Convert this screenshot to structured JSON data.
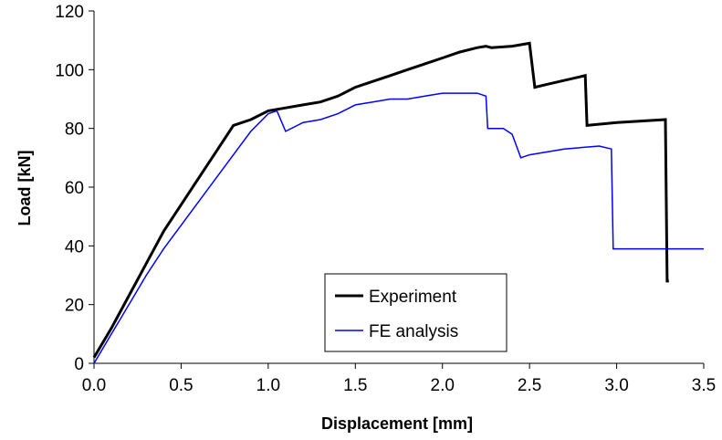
{
  "chart_data": {
    "type": "line",
    "title": "",
    "xlabel": "Displacement [mm]",
    "ylabel": "Load [kN]",
    "xlim": [
      0,
      3.5
    ],
    "ylim": [
      0,
      120
    ],
    "x_ticks": [
      "0.0",
      "0.5",
      "1.0",
      "1.5",
      "2.0",
      "2.5",
      "3.0",
      "3.5"
    ],
    "y_ticks": [
      "0",
      "20",
      "40",
      "60",
      "80",
      "100",
      "120"
    ],
    "grid": false,
    "legend_position": "bottom-center",
    "series": [
      {
        "name": "Experiment",
        "color": "#000000",
        "x": [
          0.0,
          0.1,
          0.2,
          0.3,
          0.4,
          0.5,
          0.6,
          0.7,
          0.8,
          0.9,
          1.0,
          1.1,
          1.2,
          1.3,
          1.4,
          1.5,
          1.6,
          1.7,
          1.8,
          1.9,
          2.0,
          2.1,
          2.2,
          2.25,
          2.28,
          2.4,
          2.5,
          2.53,
          2.6,
          2.82,
          2.83,
          3.0,
          3.28,
          3.29,
          3.3
        ],
        "y": [
          2,
          12,
          23,
          34,
          45,
          54,
          63,
          72,
          81,
          83,
          86,
          87,
          88,
          89,
          91,
          94,
          96,
          98,
          100,
          102,
          104,
          106,
          107.5,
          108,
          107.5,
          108,
          109,
          94,
          95,
          98,
          81,
          82,
          83,
          28,
          28
        ]
      },
      {
        "name": "FE analysis",
        "color": "#0000ff",
        "x": [
          0.0,
          0.1,
          0.2,
          0.3,
          0.4,
          0.5,
          0.6,
          0.7,
          0.8,
          0.9,
          1.0,
          1.05,
          1.1,
          1.2,
          1.3,
          1.4,
          1.5,
          1.6,
          1.7,
          1.8,
          1.9,
          2.0,
          2.1,
          2.2,
          2.25,
          2.26,
          2.35,
          2.4,
          2.45,
          2.5,
          2.7,
          2.9,
          2.97,
          2.98,
          3.1,
          3.3,
          3.5
        ],
        "y": [
          0,
          10,
          20,
          30,
          39,
          47,
          55,
          63,
          71,
          79,
          85,
          86,
          79,
          82,
          83,
          85,
          88,
          89,
          90,
          90,
          91,
          92,
          92,
          92,
          91,
          80,
          80,
          78,
          70,
          71,
          73,
          74,
          73,
          39,
          39,
          39,
          39
        ]
      }
    ]
  }
}
